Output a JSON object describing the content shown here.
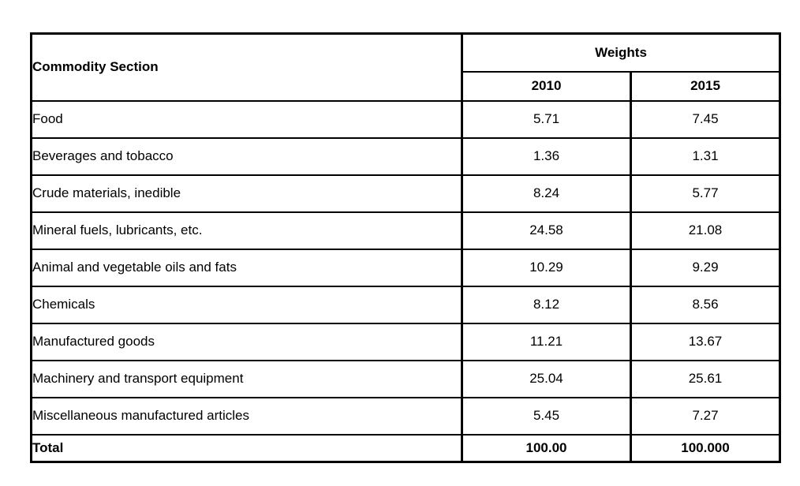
{
  "table": {
    "commodity_header": "Commodity Section",
    "weights_header": "Weights",
    "year_headers": [
      "2010",
      "2015"
    ],
    "rows": [
      {
        "label": "Food",
        "w2010": "5.71",
        "w2015": "7.45"
      },
      {
        "label": "Beverages and tobacco",
        "w2010": "1.36",
        "w2015": "1.31"
      },
      {
        "label": "Crude materials, inedible",
        "w2010": "8.24",
        "w2015": "5.77"
      },
      {
        "label": "Mineral fuels, lubricants, etc.",
        "w2010": "24.58",
        "w2015": "21.08"
      },
      {
        "label": "Animal and vegetable oils and fats",
        "w2010": "10.29",
        "w2015": "9.29"
      },
      {
        "label": "Chemicals",
        "w2010": "8.12",
        "w2015": "8.56"
      },
      {
        "label": "Manufactured goods",
        "w2010": "11.21",
        "w2015": "13.67"
      },
      {
        "label": "Machinery and transport equipment",
        "w2010": "25.04",
        "w2015": "25.61"
      },
      {
        "label": "Miscellaneous manufactured articles",
        "w2010": "5.45",
        "w2015": "7.27"
      }
    ],
    "total": {
      "label": "Total",
      "w2010": "100.00",
      "w2015": "100.000"
    }
  },
  "colors": {
    "border": "#000000",
    "text": "#000000",
    "background": "#ffffff"
  },
  "chart_data": {
    "type": "table",
    "columns": [
      "Commodity Section",
      "Weights 2010",
      "Weights 2015"
    ],
    "rows": [
      [
        "Food",
        5.71,
        7.45
      ],
      [
        "Beverages and tobacco",
        1.36,
        1.31
      ],
      [
        "Crude materials, inedible",
        8.24,
        5.77
      ],
      [
        "Mineral fuels, lubricants, etc.",
        24.58,
        21.08
      ],
      [
        "Animal and vegetable oils and fats",
        10.29,
        9.29
      ],
      [
        "Chemicals",
        8.12,
        8.56
      ],
      [
        "Manufactured goods",
        11.21,
        13.67
      ],
      [
        "Machinery and transport equipment",
        25.04,
        25.61
      ],
      [
        "Miscellaneous manufactured articles",
        5.45,
        7.27
      ],
      [
        "Total",
        100.0,
        100.0
      ]
    ]
  }
}
